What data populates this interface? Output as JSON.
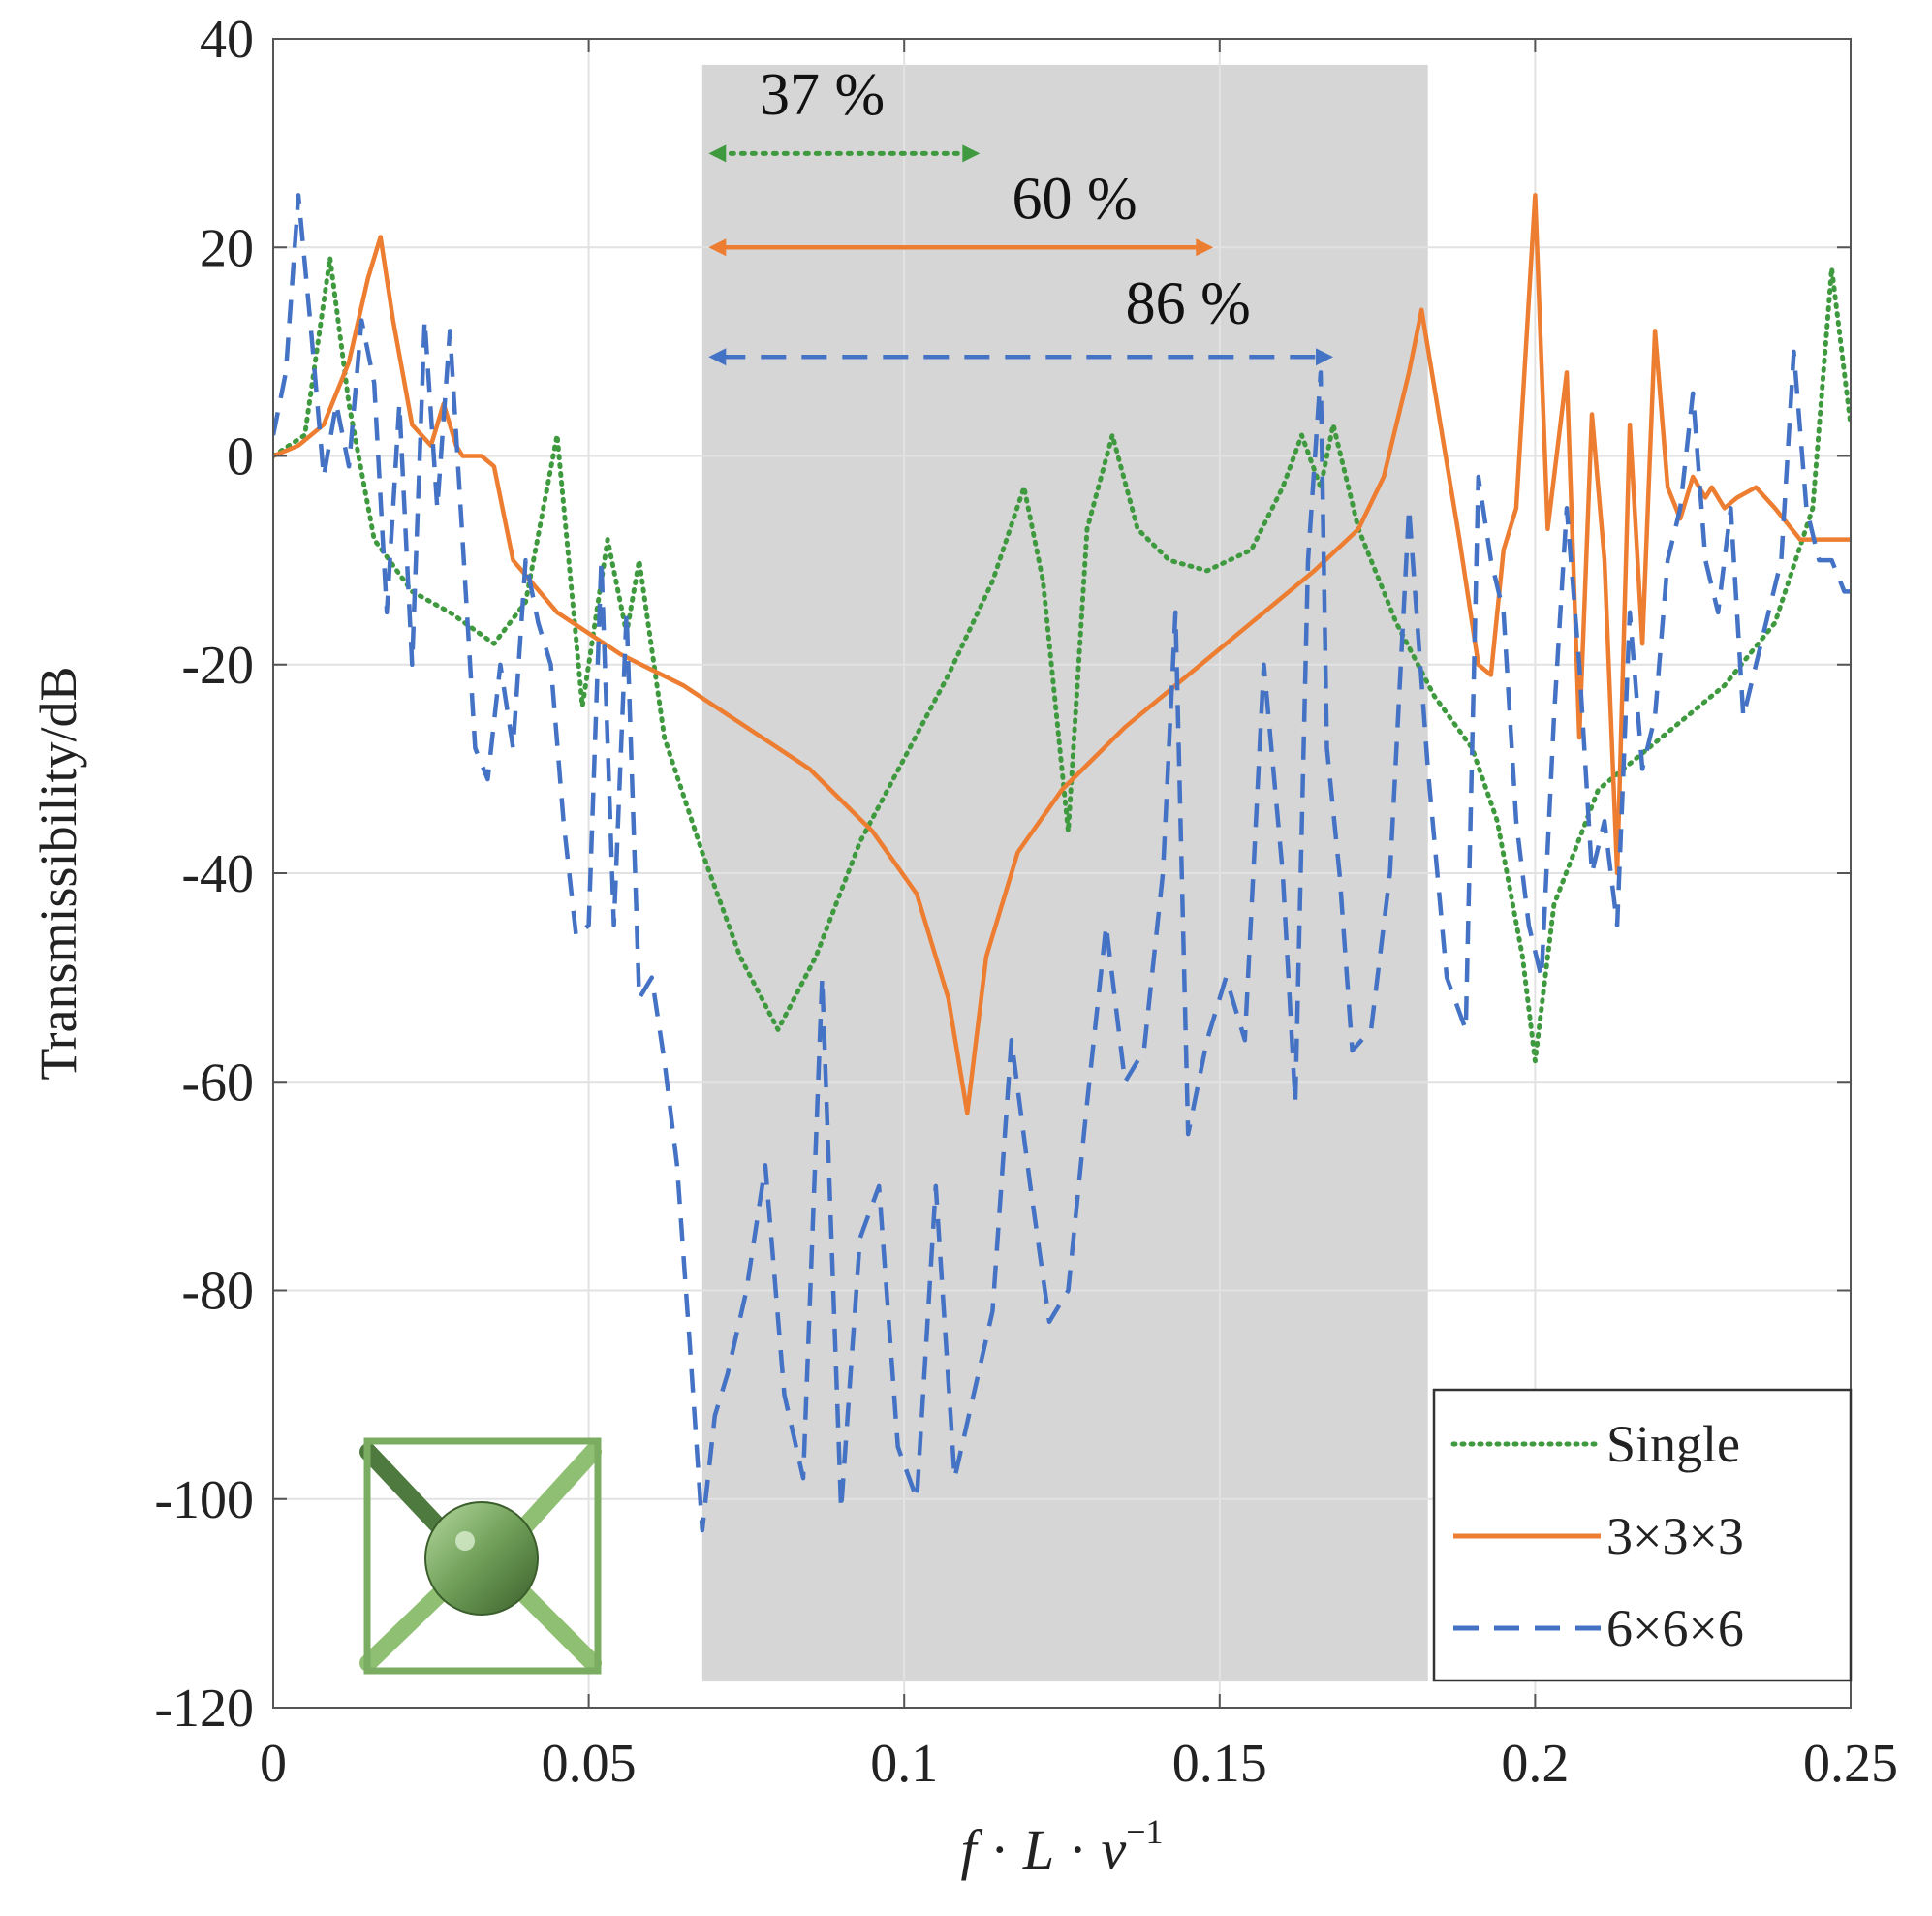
{
  "chart_data": {
    "type": "line",
    "title": "",
    "xlabel": "f · L · v⁻¹",
    "xlabel_parts": {
      "f": "f",
      "L": "L",
      "v": "v",
      "exp": "−1"
    },
    "ylabel": "Transmissibility/dB",
    "xlim": [
      0,
      0.25
    ],
    "ylim": [
      -120,
      40
    ],
    "xticks": [
      0,
      0.05,
      0.1,
      0.15,
      0.2,
      0.25
    ],
    "xtick_labels": [
      "0",
      "0.05",
      "0.1",
      "0.15",
      "0.2",
      "0.25"
    ],
    "yticks": [
      -120,
      -100,
      -80,
      -60,
      -40,
      -20,
      0,
      20,
      40
    ],
    "ytick_labels": [
      "-120",
      "-100",
      "-80",
      "-60",
      "-40",
      "-20",
      "0",
      "20",
      "40"
    ],
    "grid": true,
    "legend_position": "bottom-right",
    "band_gap": {
      "x_start": 0.068,
      "x_end": 0.183,
      "color": "#d7d6d7"
    },
    "colors": {
      "single": "#3f9a3f",
      "three": "#ed7d31",
      "six": "#4472c4"
    },
    "annotations": [
      {
        "label": "37 %",
        "x_start": 0.069,
        "x_end": 0.112,
        "y": 29,
        "label_x": 0.087,
        "label_y": 32,
        "series": "single"
      },
      {
        "label": "60 %",
        "x_start": 0.069,
        "x_end": 0.149,
        "y": 20,
        "label_x": 0.127,
        "label_y": 22,
        "series": "three"
      },
      {
        "label": "86 %",
        "x_start": 0.069,
        "x_end": 0.168,
        "y": 9.5,
        "label_x": 0.145,
        "label_y": 12,
        "series": "six"
      }
    ],
    "series": [
      {
        "name": "Single",
        "key": "single",
        "style": "dotted",
        "x": [
          0,
          0.005,
          0.009,
          0.012,
          0.016,
          0.022,
          0.028,
          0.035,
          0.04,
          0.045,
          0.049,
          0.053,
          0.056,
          0.058,
          0.062,
          0.068,
          0.074,
          0.08,
          0.086,
          0.093,
          0.1,
          0.107,
          0.114,
          0.119,
          0.122,
          0.126,
          0.129,
          0.133,
          0.137,
          0.142,
          0.148,
          0.155,
          0.16,
          0.163,
          0.166,
          0.168,
          0.172,
          0.178,
          0.184,
          0.19,
          0.194,
          0.198,
          0.2,
          0.203,
          0.21,
          0.22,
          0.23,
          0.238,
          0.244,
          0.247,
          0.25
        ],
        "values": [
          0,
          2,
          19,
          5,
          -8,
          -13,
          -15,
          -18,
          -14,
          2,
          -24,
          -8,
          -17,
          -10,
          -27,
          -38,
          -48,
          -55,
          -48,
          -37,
          -29,
          -21,
          -12,
          -3,
          -12,
          -36,
          -7,
          2,
          -7,
          -10,
          -11,
          -9,
          -3,
          2,
          -3,
          3,
          -7,
          -16,
          -23,
          -28,
          -35,
          -48,
          -58,
          -43,
          -32,
          -27,
          -22,
          -16,
          -5,
          18,
          3
        ]
      },
      {
        "name": "3×3×3",
        "key": "three",
        "style": "solid",
        "x": [
          0,
          0.004,
          0.008,
          0.012,
          0.015,
          0.017,
          0.019,
          0.022,
          0.025,
          0.027,
          0.029,
          0.03,
          0.033,
          0.035,
          0.038,
          0.045,
          0.055,
          0.065,
          0.075,
          0.085,
          0.095,
          0.102,
          0.107,
          0.11,
          0.113,
          0.118,
          0.125,
          0.135,
          0.145,
          0.155,
          0.165,
          0.172,
          0.176,
          0.18,
          0.182,
          0.185,
          0.188,
          0.191,
          0.193,
          0.195,
          0.197,
          0.2,
          0.202,
          0.205,
          0.207,
          0.209,
          0.211,
          0.213,
          0.215,
          0.217,
          0.219,
          0.221,
          0.223,
          0.225,
          0.227,
          0.228,
          0.23,
          0.232,
          0.235,
          0.238,
          0.242,
          0.245,
          0.25
        ],
        "values": [
          0,
          1,
          3,
          9,
          17,
          21,
          13,
          3,
          1,
          5,
          1,
          0,
          0,
          -1,
          -10,
          -15,
          -19,
          -22,
          -26,
          -30,
          -36,
          -42,
          -52,
          -63,
          -48,
          -38,
          -32,
          -26,
          -21,
          -16,
          -11,
          -7,
          -2,
          8,
          14,
          3,
          -8,
          -20,
          -21,
          -9,
          -5,
          25,
          -7,
          8,
          -27,
          4,
          -10,
          -40,
          3,
          -18,
          12,
          -3,
          -6,
          -2,
          -4,
          -3,
          -5,
          -4,
          -3,
          -5,
          -8,
          -8,
          -8
        ]
      },
      {
        "name": "6×6×6",
        "key": "six",
        "style": "dashed",
        "x": [
          0,
          0.002,
          0.004,
          0.006,
          0.008,
          0.01,
          0.012,
          0.014,
          0.016,
          0.018,
          0.02,
          0.022,
          0.024,
          0.026,
          0.028,
          0.03,
          0.032,
          0.034,
          0.036,
          0.038,
          0.04,
          0.042,
          0.044,
          0.046,
          0.048,
          0.05,
          0.052,
          0.054,
          0.056,
          0.058,
          0.06,
          0.062,
          0.064,
          0.066,
          0.068,
          0.07,
          0.072,
          0.075,
          0.078,
          0.081,
          0.084,
          0.087,
          0.09,
          0.093,
          0.096,
          0.099,
          0.102,
          0.105,
          0.108,
          0.111,
          0.114,
          0.117,
          0.12,
          0.123,
          0.126,
          0.129,
          0.132,
          0.135,
          0.138,
          0.141,
          0.143,
          0.145,
          0.148,
          0.151,
          0.154,
          0.157,
          0.16,
          0.162,
          0.164,
          0.166,
          0.167,
          0.169,
          0.171,
          0.174,
          0.177,
          0.18,
          0.183,
          0.186,
          0.189,
          0.191,
          0.193,
          0.195,
          0.197,
          0.199,
          0.201,
          0.203,
          0.205,
          0.207,
          0.209,
          0.211,
          0.213,
          0.215,
          0.217,
          0.219,
          0.221,
          0.223,
          0.225,
          0.227,
          0.229,
          0.231,
          0.233,
          0.235,
          0.237,
          0.239,
          0.241,
          0.243,
          0.245,
          0.247,
          0.249,
          0.25
        ],
        "values": [
          2,
          8,
          25,
          12,
          -2,
          5,
          -1,
          13,
          7,
          -15,
          5,
          -20,
          13,
          -5,
          12,
          -8,
          -28,
          -31,
          -20,
          -28,
          -10,
          -16,
          -20,
          -35,
          -46,
          -45,
          -10,
          -45,
          -15,
          -52,
          -50,
          -58,
          -68,
          -85,
          -103,
          -92,
          -88,
          -80,
          -68,
          -90,
          -98,
          -50,
          -101,
          -75,
          -70,
          -95,
          -100,
          -70,
          -98,
          -90,
          -82,
          -56,
          -70,
          -83,
          -80,
          -62,
          -45,
          -60,
          -57,
          -40,
          -15,
          -65,
          -56,
          -50,
          -56,
          -20,
          -40,
          -62,
          -10,
          8,
          -28,
          -40,
          -57,
          -55,
          -40,
          -5,
          -30,
          -50,
          -55,
          -2,
          -10,
          -15,
          -35,
          -45,
          -50,
          -25,
          -5,
          -20,
          -40,
          -35,
          -45,
          -15,
          -30,
          -25,
          -10,
          -5,
          6,
          -10,
          -15,
          -5,
          -25,
          -20,
          -15,
          -10,
          10,
          -5,
          -10,
          -10,
          -13,
          -13
        ]
      }
    ]
  },
  "legend": {
    "items": [
      {
        "label": "Single",
        "key": "single"
      },
      {
        "label": "3×3×3",
        "key": "three"
      },
      {
        "label": "6×6×6",
        "key": "six"
      }
    ]
  }
}
